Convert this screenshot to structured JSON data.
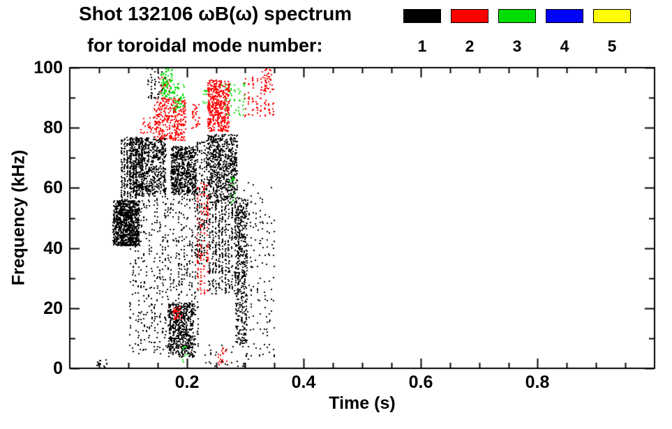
{
  "title": {
    "line1": "Shot 132106 ωB(ω) spectrum",
    "line2": "for toroidal mode number:"
  },
  "legend": {
    "items": [
      {
        "label": "1",
        "color": "#000000"
      },
      {
        "label": "2",
        "color": "#ff0000"
      },
      {
        "label": "3",
        "color": "#00dd00"
      },
      {
        "label": "4",
        "color": "#0000ff"
      },
      {
        "label": "5",
        "color": "#ffff00"
      }
    ]
  },
  "chart_data": {
    "type": "scatter",
    "title": "Shot 132106 ωB(ω) spectrum for toroidal mode number: 1 2 3 4 5",
    "xlabel": "Time (s)",
    "ylabel": "Frequency (kHz)",
    "xlim": [
      0,
      1.0
    ],
    "ylim": [
      0,
      100
    ],
    "grid": false,
    "legend_position": "top-right",
    "x_ticks": {
      "major": [
        0.2,
        0.4,
        0.6,
        0.8
      ],
      "labels": [
        "0.2",
        "0.4",
        "0.6",
        "0.8"
      ],
      "minor_step": 0.05
    },
    "y_ticks": {
      "major": [
        0,
        20,
        40,
        60,
        80,
        100
      ],
      "labels": [
        "0",
        "20",
        "40",
        "60",
        "80",
        "100"
      ],
      "minor_step": 10
    },
    "series": [
      {
        "name": "toroidal mode n=1",
        "mode": 1,
        "color": "#000000",
        "clusters": [
          {
            "t": [
              0.073,
              0.118
            ],
            "f": [
              41,
              56
            ],
            "n": 900,
            "columns": 0
          },
          {
            "t": [
              0.085,
              0.125
            ],
            "f": [
              56,
              77
            ],
            "n": 350,
            "columns": 8
          },
          {
            "t": [
              0.1,
              0.163
            ],
            "f": [
              58,
              77
            ],
            "n": 700,
            "columns": 0
          },
          {
            "t": [
              0.172,
              0.215
            ],
            "f": [
              58,
              74
            ],
            "n": 600,
            "columns": 0
          },
          {
            "t": [
              0.1,
              0.22
            ],
            "f": [
              5,
              58
            ],
            "n": 650,
            "columns": 26
          },
          {
            "t": [
              0.168,
              0.212
            ],
            "f": [
              4,
              22
            ],
            "n": 550,
            "columns": 0
          },
          {
            "t": [
              0.215,
              0.235
            ],
            "f": [
              35,
              76
            ],
            "n": 180,
            "columns": 5
          },
          {
            "t": [
              0.235,
              0.285
            ],
            "f": [
              55,
              78
            ],
            "n": 650,
            "columns": 0
          },
          {
            "t": [
              0.235,
              0.29
            ],
            "f": [
              25,
              55
            ],
            "n": 450,
            "columns": 10
          },
          {
            "t": [
              0.282,
              0.303
            ],
            "f": [
              8,
              57
            ],
            "n": 380,
            "columns": 0
          },
          {
            "t": [
              0.295,
              0.35
            ],
            "f": [
              3,
              62
            ],
            "n": 150,
            "columns": 14
          },
          {
            "t": [
              0.13,
              0.165
            ],
            "f": [
              90,
              100
            ],
            "n": 50,
            "columns": 6
          },
          {
            "t": [
              0.045,
              0.065
            ],
            "f": [
              0.5,
              3
            ],
            "n": 12,
            "columns": 0
          },
          {
            "t": [
              0.225,
              0.3
            ],
            "f": [
              0,
              8
            ],
            "n": 30,
            "columns": 8
          }
        ]
      },
      {
        "name": "toroidal mode n=2",
        "mode": 2,
        "color": "#ff0000",
        "clusters": [
          {
            "t": [
              0.143,
              0.197
            ],
            "f": [
              76,
              90
            ],
            "n": 320,
            "columns": 0
          },
          {
            "t": [
              0.235,
              0.272
            ],
            "f": [
              79,
              96
            ],
            "n": 450,
            "columns": 0
          },
          {
            "t": [
              0.295,
              0.35
            ],
            "f": [
              84,
              97
            ],
            "n": 90,
            "columns": 8
          },
          {
            "t": [
              0.215,
              0.237
            ],
            "f": [
              25,
              62
            ],
            "n": 130,
            "columns": 4
          },
          {
            "t": [
              0.176,
              0.19
            ],
            "f": [
              16,
              21
            ],
            "n": 30,
            "columns": 0
          },
          {
            "t": [
              0.327,
              0.345
            ],
            "f": [
              92,
              100
            ],
            "n": 35,
            "columns": 0
          },
          {
            "t": [
              0.252,
              0.268
            ],
            "f": [
              1,
              8
            ],
            "n": 18,
            "columns": 0
          },
          {
            "t": [
              0.208,
              0.222
            ],
            "f": [
              80,
              88
            ],
            "n": 30,
            "columns": 0
          },
          {
            "t": [
              0.12,
              0.142
            ],
            "f": [
              78,
              85
            ],
            "n": 25,
            "columns": 0
          },
          {
            "t": [
              0.15,
              0.17
            ],
            "f": [
              90,
              98
            ],
            "n": 20,
            "columns": 0
          }
        ]
      },
      {
        "name": "toroidal mode n=3",
        "mode": 3,
        "color": "#00dd00",
        "clusters": [
          {
            "t": [
              0.155,
              0.175
            ],
            "f": [
              90,
              100
            ],
            "n": 80,
            "columns": 0
          },
          {
            "t": [
              0.175,
              0.195
            ],
            "f": [
              86,
              95
            ],
            "n": 50,
            "columns": 0
          },
          {
            "t": [
              0.255,
              0.3
            ],
            "f": [
              84,
              95
            ],
            "n": 45,
            "columns": 6
          },
          {
            "t": [
              0.272,
              0.284
            ],
            "f": [
              55,
              64
            ],
            "n": 14,
            "columns": 0
          },
          {
            "t": [
              0.19,
              0.2
            ],
            "f": [
              2,
              8
            ],
            "n": 8,
            "columns": 0
          },
          {
            "t": [
              0.225,
              0.235
            ],
            "f": [
              88,
              93
            ],
            "n": 10,
            "columns": 0
          }
        ]
      },
      {
        "name": "toroidal mode n=4",
        "mode": 4,
        "color": "#0000ff",
        "clusters": []
      },
      {
        "name": "toroidal mode n=5",
        "mode": 5,
        "color": "#ffff00",
        "clusters": []
      }
    ]
  }
}
